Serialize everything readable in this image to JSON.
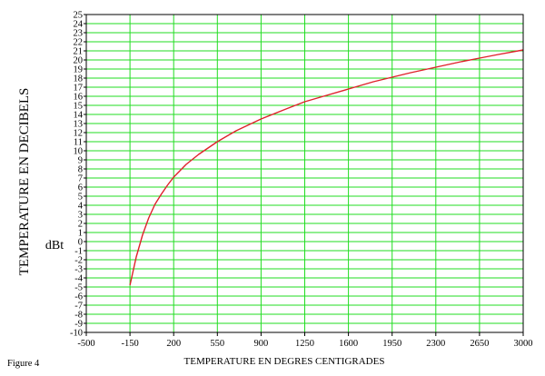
{
  "figure_label": "Figure 4",
  "chart_data": {
    "type": "line",
    "ylabel": "TEMPERATURE EN DECIBELS",
    "xlabel": "TEMPERATURE EN DEGRES CENTIGRADES",
    "unit_label": "dBt",
    "xlim": [
      -500,
      3000
    ],
    "ylim": [
      -10,
      25
    ],
    "x_ticks": [
      -500,
      -150,
      200,
      550,
      900,
      1250,
      1600,
      1950,
      2300,
      2650,
      3000
    ],
    "y_ticks": [
      -10,
      -9,
      -8,
      -7,
      -6,
      -5,
      -4,
      -3,
      -2,
      -1,
      0,
      1,
      2,
      3,
      4,
      5,
      6,
      7,
      8,
      9,
      10,
      11,
      12,
      13,
      14,
      15,
      16,
      17,
      18,
      19,
      20,
      21,
      22,
      23,
      24,
      25
    ],
    "grid": true,
    "colors": {
      "grid": "#22dd22",
      "line": "#e0202a",
      "axis": "#000000"
    },
    "series": [
      {
        "x": [
          -150,
          -100,
          -50,
          0,
          50,
          100,
          150,
          200,
          300,
          400,
          550,
          700,
          900,
          1100,
          1250,
          1400,
          1600,
          1800,
          1950,
          2100,
          2300,
          2500,
          2650,
          2800,
          3000
        ],
        "y": [
          -4.8,
          -1.7,
          0.7,
          2.6,
          4.1,
          5.2,
          6.2,
          7.1,
          8.5,
          9.6,
          11.0,
          12.2,
          13.5,
          14.6,
          15.4,
          16.0,
          16.8,
          17.6,
          18.1,
          18.6,
          19.2,
          19.8,
          20.2,
          20.6,
          21.1
        ]
      }
    ]
  }
}
